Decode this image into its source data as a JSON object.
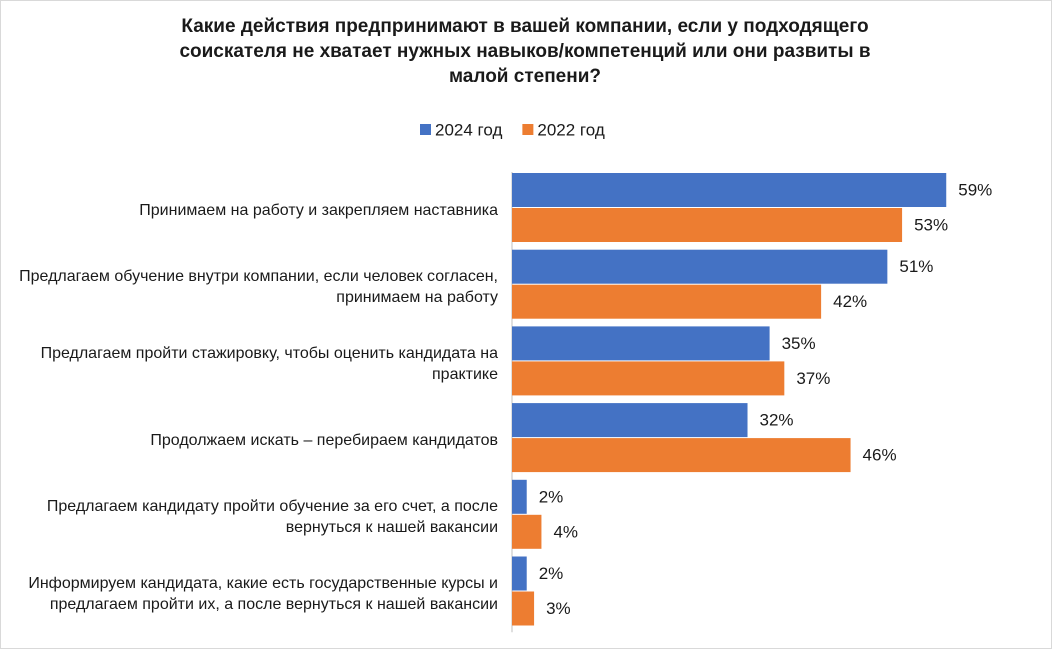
{
  "chart_data": {
    "type": "bar",
    "orientation": "horizontal",
    "title": "Какие действия предпринимают в вашей компании, если у подходящего соискателя не хватает нужных навыков/компетенций или они развиты в малой степени?",
    "categories": [
      "Принимаем на работу и закрепляем наставника",
      "Предлагаем обучение внутри компании, если человек согласен, принимаем на работу",
      "Предлагаем пройти стажировку, чтобы оценить кандидата на практике",
      "Продолжаем искать – перебираем кандидатов",
      "Предлагаем кандидату пройти обучение за его счет, а после вернуться к нашей вакансии",
      "Информируем кандидата, какие есть государственные курсы и предлагаем пройти их, а после вернуться к нашей вакансии"
    ],
    "series": [
      {
        "name": "2024 год",
        "color": "#4472c4",
        "values": [
          59,
          51,
          35,
          32,
          2,
          2
        ],
        "value_labels": [
          "59%",
          "51%",
          "35%",
          "32%",
          "2%",
          "2%"
        ]
      },
      {
        "name": "2022 год",
        "color": "#ed7d31",
        "values": [
          53,
          42,
          37,
          46,
          4,
          3
        ],
        "value_labels": [
          "53%",
          "42%",
          "37%",
          "46%",
          "4%",
          "3%"
        ]
      }
    ],
    "legend": "top"
  }
}
